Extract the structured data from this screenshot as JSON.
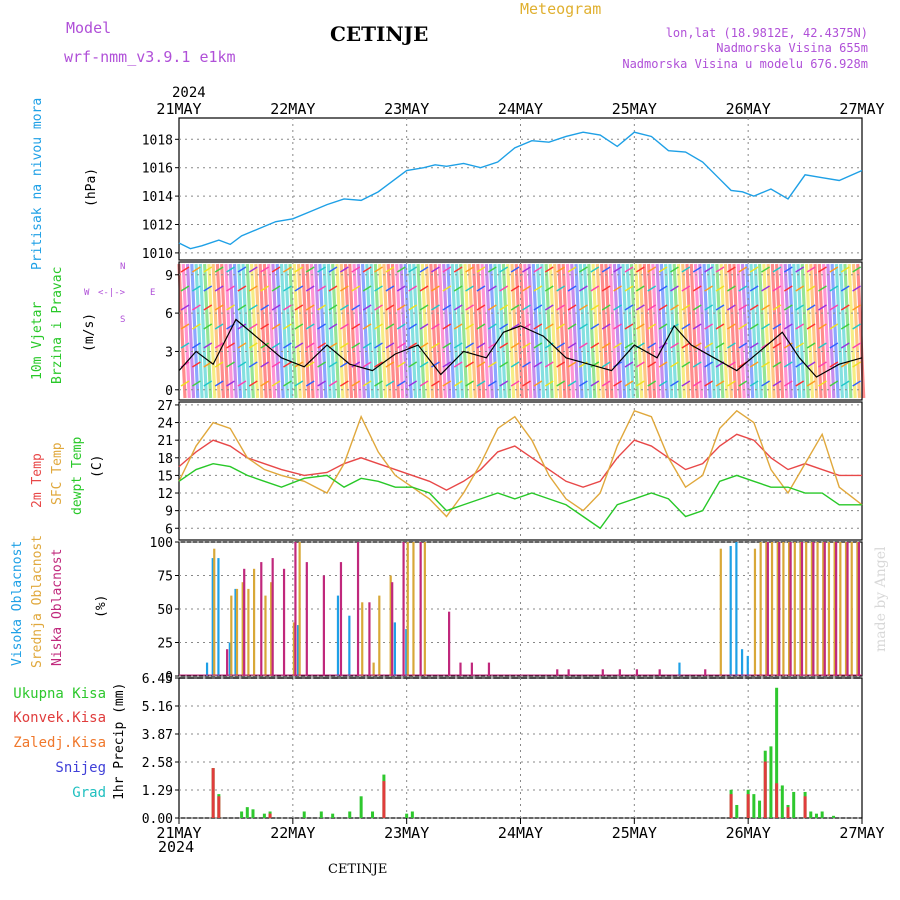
{
  "header": {
    "model_label": "Model",
    "model_name": "wrf-nmm_v3.9.1 e1km",
    "station": "CETINJE",
    "product": "Meteogram",
    "lonlat": "lon,lat (18.9812E, 42.4375N)",
    "altitude": "Nadmorska Visina 655m",
    "model_altitude": "Nadmorska Visina u modelu 676.928m"
  },
  "footer": {
    "station": "CETINJE"
  },
  "watermark": "made by Angel",
  "time_axis": {
    "year": "2024",
    "labels": [
      "21MAY",
      "22MAY",
      "23MAY",
      "24MAY",
      "25MAY",
      "26MAY",
      "27MAY"
    ]
  },
  "panels": {
    "pressure": {
      "ylabel": "Pritisak na nivou mora",
      "unit": "(hPa)"
    },
    "wind": {
      "ylabel_1": "10m Vjetar",
      "ylabel_2": "Brzina i Pravac",
      "unit": "(m/s)",
      "compass": {
        "n": "N",
        "s": "S",
        "w": "W",
        "e": "E"
      }
    },
    "temp": {
      "ylabel_1": "2m Temp",
      "ylabel_2": "SFC Temp",
      "ylabel_3": "dewpt Temp",
      "unit": "(C)"
    },
    "cloud": {
      "ylabel_1": "Visoka Oblacnost",
      "ylabel_2": "Srednja Oblacnost",
      "ylabel_3": "Niska Oblacnost",
      "unit": "(%)"
    },
    "precip": {
      "legend": [
        "Ukupna Kisa",
        "Konvek.Kisa",
        "Zaledj.Kisa",
        "Snijeg",
        "Grad"
      ],
      "unit": "1hr Precip (mm)"
    }
  },
  "colors": {
    "pressure": "#1ea0e6",
    "temp2m": "#e84848",
    "sfc": "#e0a83c",
    "dewpt": "#28c828",
    "high_cloud": "#1ea0e6",
    "mid_cloud": "#d8a838",
    "low_cloud": "#c0287c",
    "rain": "#2ec82e",
    "conv": "#e03c3c",
    "frz": "#f0782c",
    "snow": "#4040d8",
    "hail": "#20c0c0"
  },
  "chart_data": [
    {
      "type": "line",
      "name": "pressure",
      "ylim": [
        1009.5,
        1019.5
      ],
      "yticks": [
        1010,
        1012,
        1014,
        1016,
        1018
      ],
      "series": [
        {
          "x": [
            0,
            0.1,
            0.2,
            0.35,
            0.45,
            0.55,
            0.7,
            0.85,
            1.0,
            1.15,
            1.3,
            1.45,
            1.6,
            1.75,
            1.85,
            2.0,
            2.15,
            2.25,
            2.35,
            2.5,
            2.65,
            2.8,
            2.95,
            3.1,
            3.25,
            3.4,
            3.55,
            3.7,
            3.85,
            4.0,
            4.15,
            4.3,
            4.45,
            4.6,
            4.75,
            4.85,
            4.95,
            5.05,
            5.2,
            5.35,
            5.5,
            5.65,
            5.8,
            6.0
          ],
          "y": [
            1010.7,
            1010.3,
            1010.5,
            1010.9,
            1010.6,
            1011.2,
            1011.7,
            1012.2,
            1012.4,
            1012.9,
            1013.4,
            1013.8,
            1013.7,
            1014.3,
            1014.9,
            1015.8,
            1016.0,
            1016.2,
            1016.1,
            1016.3,
            1016.0,
            1016.4,
            1017.4,
            1017.9,
            1017.8,
            1018.2,
            1018.5,
            1018.3,
            1017.5,
            1018.5,
            1018.2,
            1017.2,
            1017.1,
            1016.4,
            1015.2,
            1014.4,
            1014.3,
            1014.0,
            1014.5,
            1013.8,
            1015.5,
            1015.3,
            1015.1,
            1015.8
          ]
        }
      ]
    },
    {
      "type": "line",
      "name": "wind",
      "ylim": [
        -0.8,
        10
      ],
      "yticks": [
        0,
        3,
        6,
        9
      ],
      "series": [
        {
          "name": "wind_speed",
          "x": [
            0,
            0.15,
            0.3,
            0.5,
            0.7,
            0.9,
            1.1,
            1.3,
            1.5,
            1.7,
            1.9,
            2.1,
            2.3,
            2.5,
            2.7,
            2.85,
            3.0,
            3.2,
            3.4,
            3.6,
            3.8,
            4.0,
            4.2,
            4.35,
            4.5,
            4.7,
            4.9,
            5.1,
            5.3,
            5.45,
            5.6,
            5.8,
            6.0
          ],
          "y": [
            1.5,
            3.0,
            2.0,
            5.5,
            4.0,
            2.5,
            1.8,
            3.5,
            2.0,
            1.5,
            2.8,
            3.5,
            1.2,
            3.0,
            2.5,
            4.5,
            5.0,
            4.2,
            2.5,
            2.0,
            1.5,
            3.5,
            2.5,
            5.0,
            3.5,
            2.5,
            1.5,
            3.0,
            4.5,
            2.5,
            1.0,
            2.0,
            2.5
          ]
        }
      ]
    },
    {
      "type": "line",
      "name": "temperature",
      "ylim": [
        4,
        27.5
      ],
      "yticks": [
        6,
        9,
        12,
        15,
        18,
        21,
        24,
        27
      ],
      "series": [
        {
          "name": "2m_temp",
          "x": [
            0,
            0.15,
            0.3,
            0.45,
            0.6,
            0.75,
            0.9,
            1.1,
            1.3,
            1.45,
            1.6,
            1.75,
            1.9,
            2.05,
            2.2,
            2.35,
            2.5,
            2.65,
            2.8,
            2.95,
            3.1,
            3.25,
            3.4,
            3.55,
            3.7,
            3.85,
            4.0,
            4.15,
            4.3,
            4.45,
            4.6,
            4.75,
            4.9,
            5.05,
            5.2,
            5.35,
            5.5,
            5.65,
            5.8,
            6.0
          ],
          "y": [
            16.5,
            19,
            21,
            20,
            18,
            17,
            16,
            15,
            15.5,
            17,
            18,
            17,
            16,
            15,
            14,
            12.5,
            14,
            16,
            19,
            20,
            18,
            16,
            14,
            13,
            14,
            18,
            21,
            20,
            18,
            16,
            17,
            20,
            22,
            21,
            18,
            16,
            17,
            16,
            15,
            15
          ]
        },
        {
          "name": "sfc_temp",
          "x": [
            0,
            0.15,
            0.3,
            0.45,
            0.6,
            0.75,
            0.9,
            1.1,
            1.3,
            1.45,
            1.6,
            1.75,
            1.9,
            2.05,
            2.2,
            2.35,
            2.5,
            2.65,
            2.8,
            2.95,
            3.1,
            3.25,
            3.4,
            3.55,
            3.7,
            3.85,
            4.0,
            4.15,
            4.3,
            4.45,
            4.6,
            4.75,
            4.9,
            5.05,
            5.2,
            5.35,
            5.5,
            5.65,
            5.8,
            6.0
          ],
          "y": [
            14,
            20,
            24,
            23,
            18,
            16,
            15,
            14,
            12,
            17,
            25,
            19,
            15,
            13,
            11,
            8,
            12,
            17,
            23,
            25,
            21,
            15,
            11,
            9,
            12,
            20,
            26,
            25,
            18,
            13,
            15,
            23,
            26,
            24,
            16,
            12,
            17,
            22,
            13,
            10
          ]
        },
        {
          "name": "dewpt_temp",
          "x": [
            0,
            0.15,
            0.3,
            0.45,
            0.6,
            0.75,
            0.9,
            1.1,
            1.3,
            1.45,
            1.6,
            1.75,
            1.9,
            2.05,
            2.2,
            2.35,
            2.5,
            2.65,
            2.8,
            2.95,
            3.1,
            3.25,
            3.4,
            3.55,
            3.7,
            3.85,
            4.0,
            4.15,
            4.3,
            4.45,
            4.6,
            4.75,
            4.9,
            5.05,
            5.2,
            5.35,
            5.5,
            5.65,
            5.8,
            6.0
          ],
          "y": [
            14,
            16,
            17,
            16.5,
            15,
            14,
            13,
            14.5,
            15,
            13,
            14.5,
            14,
            13,
            13,
            12,
            9,
            10,
            11,
            12,
            11,
            12,
            11,
            10,
            8,
            6,
            10,
            11,
            12,
            11,
            8,
            9,
            14,
            15,
            14,
            13,
            13,
            12,
            12,
            10,
            10
          ]
        }
      ]
    },
    {
      "type": "bar",
      "name": "cloud_cover",
      "ylim": [
        0,
        100
      ],
      "yticks": [
        0,
        25,
        50,
        75,
        100
      ],
      "series": [
        {
          "name": "high",
          "x": [
            0.25,
            0.3,
            0.35,
            0.45,
            0.5,
            1.05,
            1.4,
            1.5,
            1.9,
            2.0,
            4.85,
            4.9,
            4.95,
            5.0,
            4.4
          ],
          "values": [
            10,
            88,
            88,
            25,
            65,
            38,
            60,
            45,
            40,
            35,
            97,
            100,
            20,
            15,
            10
          ]
        },
        {
          "name": "mid",
          "x": [
            0.3,
            0.45,
            0.5,
            0.55,
            0.6,
            0.65,
            0.75,
            0.8,
            1.0,
            1.05,
            1.6,
            1.7,
            1.75,
            1.85,
            2.0,
            2.05,
            2.15,
            4.75,
            5.05,
            5.1,
            5.15,
            5.2,
            5.25,
            5.3,
            5.35,
            5.4,
            5.45,
            5.5,
            5.55,
            5.6,
            5.65,
            5.7,
            5.75,
            5.8,
            5.85,
            5.9,
            5.95
          ],
          "values": [
            95,
            60,
            65,
            70,
            65,
            80,
            60,
            70,
            40,
            100,
            55,
            10,
            60,
            75,
            100,
            100,
            100,
            95,
            95,
            100,
            100,
            100,
            100,
            100,
            100,
            100,
            100,
            100,
            100,
            100,
            100,
            100,
            100,
            100,
            100,
            100,
            100
          ]
        },
        {
          "name": "low",
          "x": [
            0.4,
            0.55,
            0.7,
            0.8,
            0.9,
            1.0,
            1.1,
            1.25,
            1.4,
            1.55,
            1.65,
            1.85,
            1.95,
            2.1,
            2.35,
            2.45,
            2.55,
            2.7,
            3.3,
            3.4,
            3.7,
            3.85,
            4.0,
            4.2,
            4.6,
            5.15,
            5.25,
            5.35,
            5.45,
            5.55,
            5.65,
            5.75,
            5.85,
            5.95
          ],
          "values": [
            20,
            80,
            85,
            88,
            80,
            100,
            85,
            75,
            85,
            100,
            55,
            70,
            100,
            100,
            48,
            10,
            10,
            10,
            5,
            5,
            5,
            5,
            5,
            5,
            5,
            100,
            100,
            100,
            100,
            100,
            100,
            100,
            100,
            100
          ]
        }
      ]
    },
    {
      "type": "bar",
      "name": "precipitation",
      "ylim": [
        0,
        6.45
      ],
      "yticks": [
        0,
        1.29,
        2.58,
        3.87,
        5.16,
        6.45
      ],
      "series": [
        {
          "name": "total",
          "x": [
            0.3,
            0.35,
            0.55,
            0.6,
            0.65,
            0.75,
            0.8,
            1.1,
            1.25,
            1.35,
            1.5,
            1.6,
            1.7,
            1.8,
            2.0,
            2.05,
            4.85,
            4.9,
            5.0,
            5.05,
            5.1,
            5.15,
            5.2,
            5.25,
            5.3,
            5.35,
            5.4,
            5.5,
            5.55,
            5.6,
            5.65,
            5.75
          ],
          "values": [
            2.3,
            1.1,
            0.3,
            0.5,
            0.4,
            0.2,
            0.3,
            0.3,
            0.3,
            0.2,
            0.3,
            1.0,
            0.3,
            2.0,
            0.2,
            0.3,
            1.3,
            0.6,
            1.3,
            1.1,
            0.8,
            3.1,
            3.3,
            6.0,
            1.5,
            0.6,
            1.2,
            1.2,
            0.3,
            0.2,
            0.3,
            0.1
          ]
        },
        {
          "name": "convective",
          "x": [
            0.3,
            0.35,
            0.8,
            1.8,
            4.85,
            5.0,
            5.15,
            5.25,
            5.35,
            5.5
          ],
          "values": [
            2.3,
            1.0,
            0.2,
            1.7,
            1.1,
            1.1,
            2.6,
            1.6,
            0.5,
            1.0
          ]
        }
      ]
    }
  ]
}
